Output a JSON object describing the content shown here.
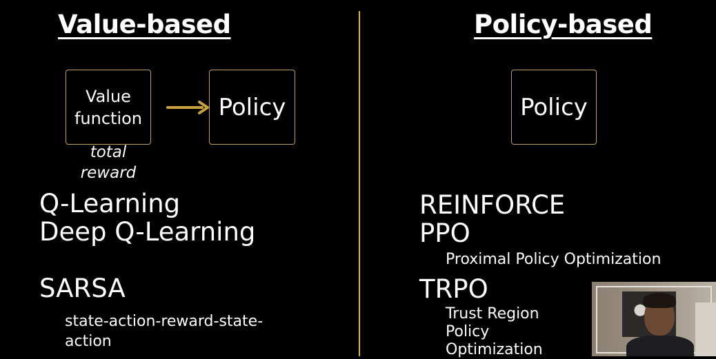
{
  "left": {
    "heading": "Value-based",
    "box_value_line1": "Value",
    "box_value_line2": "function",
    "box_policy": "Policy",
    "caption_line1": "total",
    "caption_line2": "reward",
    "algorithms": {
      "q_learning": "Q-Learning",
      "deep_q_learning": "Deep Q-Learning",
      "sarsa": "SARSA",
      "sarsa_desc_line1": "state-action-reward-state-",
      "sarsa_desc_line2": "action"
    }
  },
  "right": {
    "heading": "Policy-based",
    "box_policy": "Policy",
    "algorithms": {
      "reinforce": "REINFORCE",
      "ppo": "PPO",
      "ppo_desc": "Proximal Policy Optimization",
      "trpo": "TRPO",
      "trpo_desc_line1": "Trust Region",
      "trpo_desc_line2": "Policy",
      "trpo_desc_line3": "Optimization"
    }
  },
  "colors": {
    "background": "#000000",
    "text": "#ffffff",
    "divider": "#d9b93a",
    "box_border": "#c4a05a",
    "arrow": "#c9a13c"
  },
  "icons": {
    "arrow": "arrow-right-icon"
  }
}
